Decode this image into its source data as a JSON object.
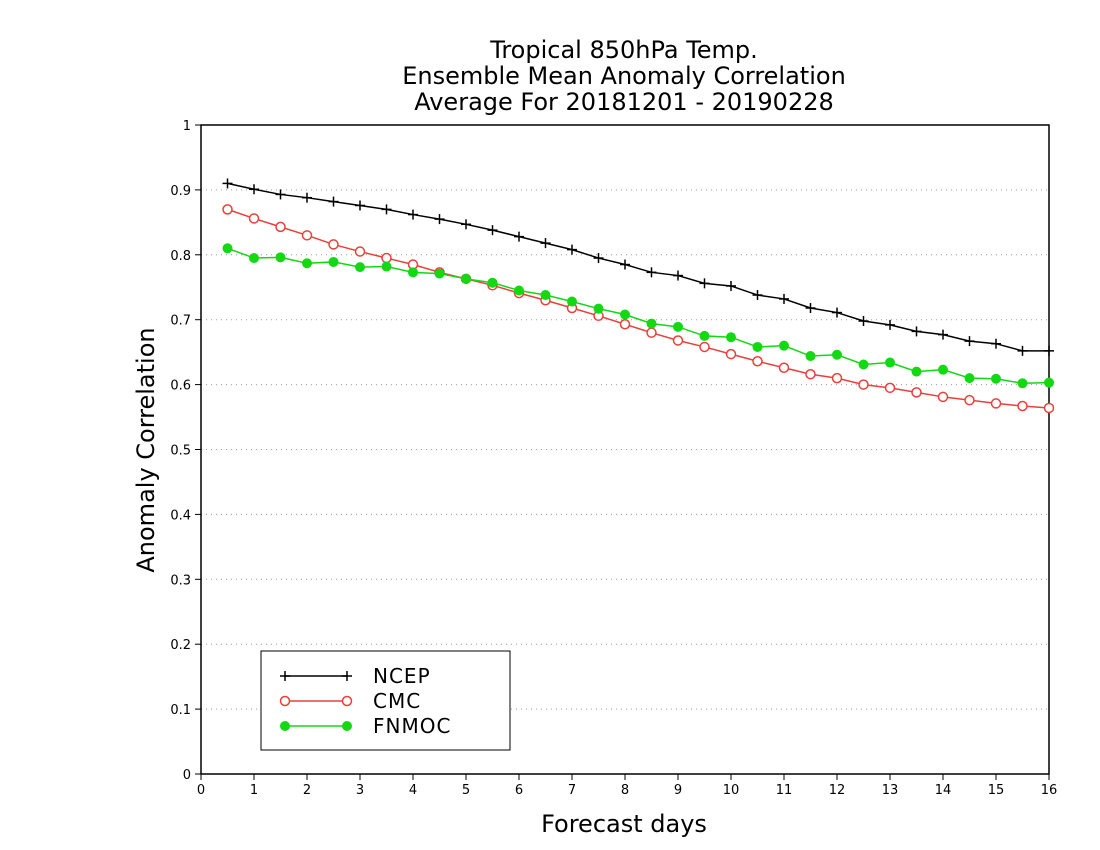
{
  "chart_data": {
    "type": "line",
    "title_lines": [
      "Tropical 850hPa Temp.",
      "Ensemble Mean Anomaly Correlation",
      "Average For 20181201 - 20190228"
    ],
    "xlabel": "Forecast days",
    "ylabel": "Anomaly Correlation",
    "xlim": [
      0,
      16
    ],
    "ylim": [
      0,
      1
    ],
    "xticks": [
      "0",
      "1",
      "2",
      "3",
      "4",
      "5",
      "6",
      "7",
      "8",
      "9",
      "10",
      "11",
      "12",
      "13",
      "14",
      "15",
      "16"
    ],
    "yticks": [
      "0",
      "0.1",
      "0.2",
      "0.3",
      "0.4",
      "0.5",
      "0.6",
      "0.7",
      "0.8",
      "0.9",
      "1"
    ],
    "grid": "horizontal-dotted",
    "legend_position": "bottom-left",
    "x": [
      0.5,
      1,
      1.5,
      2,
      2.5,
      3,
      3.5,
      4,
      4.5,
      5,
      5.5,
      6,
      6.5,
      7,
      7.5,
      8,
      8.5,
      9,
      9.5,
      10,
      10.5,
      11,
      11.5,
      12,
      12.5,
      13,
      13.5,
      14,
      14.5,
      15,
      15.5,
      16
    ],
    "series": [
      {
        "name": "NCEP",
        "color": "#000000",
        "marker": "plus",
        "values": [
          0.91,
          0.901,
          0.893,
          0.888,
          0.882,
          0.876,
          0.87,
          0.862,
          0.855,
          0.847,
          0.838,
          0.828,
          0.818,
          0.808,
          0.795,
          0.785,
          0.773,
          0.768,
          0.756,
          0.752,
          0.738,
          0.732,
          0.718,
          0.711,
          0.698,
          0.692,
          0.682,
          0.677,
          0.667,
          0.663,
          0.652,
          0.652
        ]
      },
      {
        "name": "CMC",
        "color": "#e8403a",
        "marker": "open-circle",
        "values": [
          0.87,
          0.856,
          0.843,
          0.83,
          0.816,
          0.805,
          0.795,
          0.785,
          0.773,
          0.763,
          0.753,
          0.741,
          0.73,
          0.718,
          0.706,
          0.693,
          0.68,
          0.668,
          0.658,
          0.647,
          0.636,
          0.626,
          0.616,
          0.61,
          0.6,
          0.595,
          0.588,
          0.581,
          0.576,
          0.571,
          0.567,
          0.564
        ]
      },
      {
        "name": "FNMOC",
        "color": "#14d814",
        "marker": "filled-circle",
        "values": [
          0.81,
          0.795,
          0.796,
          0.787,
          0.789,
          0.781,
          0.782,
          0.773,
          0.771,
          0.763,
          0.757,
          0.745,
          0.738,
          0.728,
          0.717,
          0.708,
          0.694,
          0.689,
          0.675,
          0.673,
          0.658,
          0.66,
          0.644,
          0.646,
          0.631,
          0.634,
          0.62,
          0.623,
          0.61,
          0.609,
          0.602,
          0.603
        ]
      }
    ]
  }
}
